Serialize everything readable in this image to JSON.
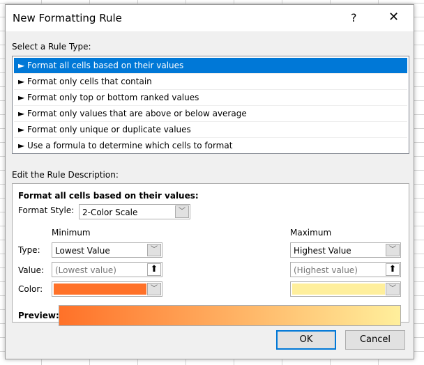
{
  "title": "New Formatting Rule",
  "help_label": "?",
  "close_label": "✕",
  "select_label": "Select a Rule Type:",
  "rule_types": [
    "► Format all cells based on their values",
    "► Format only cells that contain",
    "► Format only top or bottom ranked values",
    "► Format only values that are above or below average",
    "► Format only unique or duplicate values",
    "► Use a formula to determine which cells to format"
  ],
  "edit_label": "Edit the Rule Description:",
  "desc_heading": "Format all cells based on their values:",
  "format_style_label": "Format Style:",
  "format_style_value": "2-Color Scale",
  "type_label": "Type:",
  "value_label": "Value:",
  "color_label": "Color:",
  "minimum": {
    "heading": "Minimum",
    "type": "Lowest Value",
    "value_placeholder": "(Lowest value)",
    "color": "#ff7128"
  },
  "maximum": {
    "heading": "Maximum",
    "type": "Highest Value",
    "value_placeholder": "(Highest value)",
    "color": "#ffef9c"
  },
  "preview_label": "Preview:",
  "ok_label": "OK",
  "cancel_label": "Cancel",
  "selected_color": "#0078d7"
}
